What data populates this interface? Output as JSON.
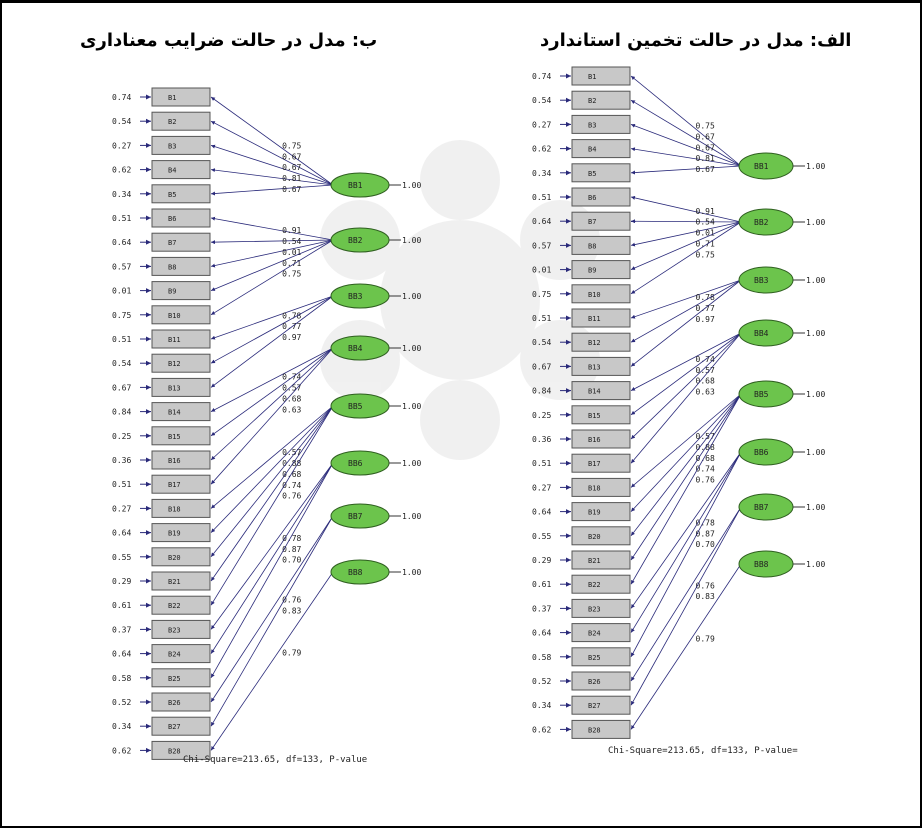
{
  "titles": {
    "left": "ب: مدل در حالت ضرایب معناداری",
    "right": "الف: مدل در حالت تخمین استاندارد"
  },
  "colors": {
    "latent_fill": "#6cc44c",
    "indicator_fill": "#c8c8c8",
    "arrow": "#2a2a7a"
  },
  "diagrams": [
    {
      "id": "significance",
      "observed": [
        {
          "label": "B1",
          "error": "0.74"
        },
        {
          "label": "B2",
          "error": "0.54"
        },
        {
          "label": "B3",
          "error": "0.27"
        },
        {
          "label": "B4",
          "error": "0.62"
        },
        {
          "label": "B5",
          "error": "0.34"
        },
        {
          "label": "B6",
          "error": "0.51"
        },
        {
          "label": "B7",
          "error": "0.64"
        },
        {
          "label": "B8",
          "error": "0.57"
        },
        {
          "label": "B9",
          "error": "0.01"
        },
        {
          "label": "B10",
          "error": "0.75"
        },
        {
          "label": "B11",
          "error": "0.51"
        },
        {
          "label": "B12",
          "error": "0.54"
        },
        {
          "label": "B13",
          "error": "0.67"
        },
        {
          "label": "B14",
          "error": "0.84"
        },
        {
          "label": "B15",
          "error": "0.25"
        },
        {
          "label": "B16",
          "error": "0.36"
        },
        {
          "label": "B17",
          "error": "0.51"
        },
        {
          "label": "B18",
          "error": "0.27"
        },
        {
          "label": "B19",
          "error": "0.64"
        },
        {
          "label": "B20",
          "error": "0.55"
        },
        {
          "label": "B21",
          "error": "0.29"
        },
        {
          "label": "B22",
          "error": "0.61"
        },
        {
          "label": "B23",
          "error": "0.37"
        },
        {
          "label": "B24",
          "error": "0.64"
        },
        {
          "label": "B25",
          "error": "0.58"
        },
        {
          "label": "B26",
          "error": "0.52"
        },
        {
          "label": "B27",
          "error": "0.34"
        },
        {
          "label": "B28",
          "error": "0.62"
        }
      ],
      "latent": [
        {
          "label": "BB1",
          "variance": "1.00"
        },
        {
          "label": "BB2",
          "variance": "1.00"
        },
        {
          "label": "BB3",
          "variance": "1.00"
        },
        {
          "label": "BB4",
          "variance": "1.00"
        },
        {
          "label": "BB5",
          "variance": "1.00"
        },
        {
          "label": "BB6",
          "variance": "1.00"
        },
        {
          "label": "BB7",
          "variance": "1.00"
        },
        {
          "label": "BB8",
          "variance": "1.00"
        }
      ],
      "paths": [
        {
          "latent": 0,
          "observed": 0,
          "value": "0.75"
        },
        {
          "latent": 0,
          "observed": 1,
          "value": "0.67"
        },
        {
          "latent": 0,
          "observed": 2,
          "value": "0.67"
        },
        {
          "latent": 0,
          "observed": 3,
          "value": "0.81"
        },
        {
          "latent": 0,
          "observed": 4,
          "value": "0.67"
        },
        {
          "latent": 1,
          "observed": 5,
          "value": "0.91"
        },
        {
          "latent": 1,
          "observed": 6,
          "value": "0.54"
        },
        {
          "latent": 1,
          "observed": 7,
          "value": "0.01"
        },
        {
          "latent": 1,
          "observed": 8,
          "value": "0.71"
        },
        {
          "latent": 1,
          "observed": 9,
          "value": "0.75"
        },
        {
          "latent": 2,
          "observed": 10,
          "value": "0.78"
        },
        {
          "latent": 2,
          "observed": 11,
          "value": "0.77"
        },
        {
          "latent": 2,
          "observed": 12,
          "value": "0.97"
        },
        {
          "latent": 3,
          "observed": 13,
          "value": "0.74"
        },
        {
          "latent": 3,
          "observed": 14,
          "value": "0.57"
        },
        {
          "latent": 3,
          "observed": 15,
          "value": "0.68"
        },
        {
          "latent": 3,
          "observed": 16,
          "value": "0.63"
        },
        {
          "latent": 4,
          "observed": 17,
          "value": "0.57"
        },
        {
          "latent": 4,
          "observed": 18,
          "value": "0.88"
        },
        {
          "latent": 4,
          "observed": 19,
          "value": "0.68"
        },
        {
          "latent": 4,
          "observed": 20,
          "value": "0.74"
        },
        {
          "latent": 4,
          "observed": 21,
          "value": "0.76"
        },
        {
          "latent": 5,
          "observed": 22,
          "value": "0.78"
        },
        {
          "latent": 5,
          "observed": 23,
          "value": "0.87"
        },
        {
          "latent": 5,
          "observed": 24,
          "value": "0.70"
        },
        {
          "latent": 6,
          "observed": 25,
          "value": "0.76"
        },
        {
          "latent": 6,
          "observed": 26,
          "value": "0.83"
        },
        {
          "latent": 7,
          "observed": 27,
          "value": "0.79"
        }
      ],
      "fit_text": "Chi-Square=213.65, df=133, P-value"
    },
    {
      "id": "standard",
      "observed": [
        {
          "label": "B1",
          "error": "0.74"
        },
        {
          "label": "B2",
          "error": "0.54"
        },
        {
          "label": "B3",
          "error": "0.27"
        },
        {
          "label": "B4",
          "error": "0.62"
        },
        {
          "label": "B5",
          "error": "0.34"
        },
        {
          "label": "B6",
          "error": "0.51"
        },
        {
          "label": "B7",
          "error": "0.64"
        },
        {
          "label": "B8",
          "error": "0.57"
        },
        {
          "label": "B9",
          "error": "0.01"
        },
        {
          "label": "B10",
          "error": "0.75"
        },
        {
          "label": "B11",
          "error": "0.51"
        },
        {
          "label": "B12",
          "error": "0.54"
        },
        {
          "label": "B13",
          "error": "0.67"
        },
        {
          "label": "B14",
          "error": "0.84"
        },
        {
          "label": "B15",
          "error": "0.25"
        },
        {
          "label": "B16",
          "error": "0.36"
        },
        {
          "label": "B17",
          "error": "0.51"
        },
        {
          "label": "B18",
          "error": "0.27"
        },
        {
          "label": "B19",
          "error": "0.64"
        },
        {
          "label": "B20",
          "error": "0.55"
        },
        {
          "label": "B21",
          "error": "0.29"
        },
        {
          "label": "B22",
          "error": "0.61"
        },
        {
          "label": "B23",
          "error": "0.37"
        },
        {
          "label": "B24",
          "error": "0.64"
        },
        {
          "label": "B25",
          "error": "0.58"
        },
        {
          "label": "B26",
          "error": "0.52"
        },
        {
          "label": "B27",
          "error": "0.34"
        },
        {
          "label": "B28",
          "error": "0.62"
        }
      ],
      "latent": [
        {
          "label": "BB1",
          "variance": "1.00"
        },
        {
          "label": "BB2",
          "variance": "1.00"
        },
        {
          "label": "BB3",
          "variance": "1.00"
        },
        {
          "label": "BB4",
          "variance": "1.00"
        },
        {
          "label": "BB5",
          "variance": "1.00"
        },
        {
          "label": "BB6",
          "variance": "1.00"
        },
        {
          "label": "BB7",
          "variance": "1.00"
        },
        {
          "label": "BB8",
          "variance": "1.00"
        }
      ],
      "paths": [
        {
          "latent": 0,
          "observed": 0,
          "value": "0.75"
        },
        {
          "latent": 0,
          "observed": 1,
          "value": "0.67"
        },
        {
          "latent": 0,
          "observed": 2,
          "value": "0.67"
        },
        {
          "latent": 0,
          "observed": 3,
          "value": "0.81"
        },
        {
          "latent": 0,
          "observed": 4,
          "value": "0.67"
        },
        {
          "latent": 1,
          "observed": 5,
          "value": "0.91"
        },
        {
          "latent": 1,
          "observed": 6,
          "value": "0.54"
        },
        {
          "latent": 1,
          "observed": 7,
          "value": "0.01"
        },
        {
          "latent": 1,
          "observed": 8,
          "value": "0.71"
        },
        {
          "latent": 1,
          "observed": 9,
          "value": "0.75"
        },
        {
          "latent": 2,
          "observed": 10,
          "value": "0.78"
        },
        {
          "latent": 2,
          "observed": 11,
          "value": "0.77"
        },
        {
          "latent": 2,
          "observed": 12,
          "value": "0.97"
        },
        {
          "latent": 3,
          "observed": 13,
          "value": "0.74"
        },
        {
          "latent": 3,
          "observed": 14,
          "value": "0.57"
        },
        {
          "latent": 3,
          "observed": 15,
          "value": "0.68"
        },
        {
          "latent": 3,
          "observed": 16,
          "value": "0.63"
        },
        {
          "latent": 4,
          "observed": 17,
          "value": "0.57"
        },
        {
          "latent": 4,
          "observed": 18,
          "value": "0.88"
        },
        {
          "latent": 4,
          "observed": 19,
          "value": "0.68"
        },
        {
          "latent": 4,
          "observed": 20,
          "value": "0.74"
        },
        {
          "latent": 4,
          "observed": 21,
          "value": "0.76"
        },
        {
          "latent": 5,
          "observed": 22,
          "value": "0.78"
        },
        {
          "latent": 5,
          "observed": 23,
          "value": "0.87"
        },
        {
          "latent": 5,
          "observed": 24,
          "value": "0.70"
        },
        {
          "latent": 6,
          "observed": 25,
          "value": "0.76"
        },
        {
          "latent": 6,
          "observed": 26,
          "value": "0.83"
        },
        {
          "latent": 7,
          "observed": 27,
          "value": "0.79"
        }
      ],
      "fit_text": "Chi-Square=213.65, df=133, P-value="
    }
  ]
}
